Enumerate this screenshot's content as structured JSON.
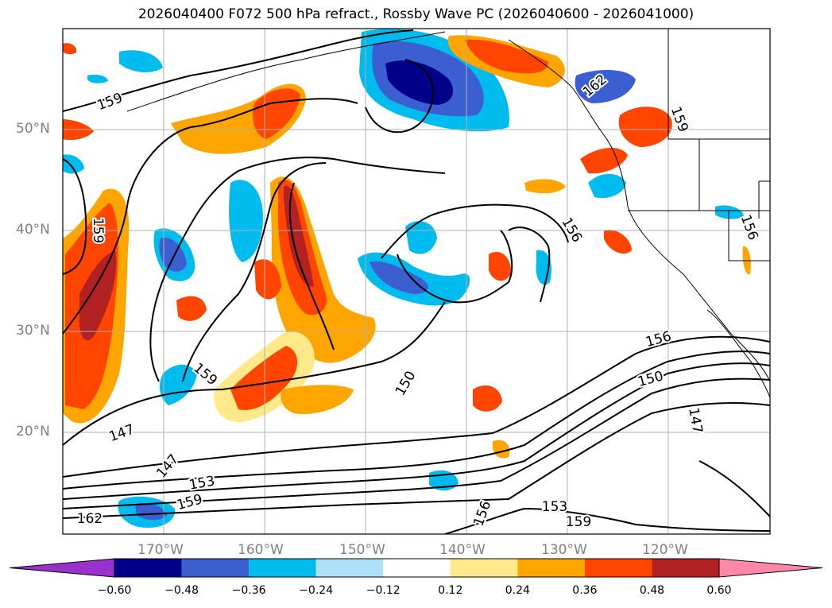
{
  "title": "2026040400 F072 500 hPa refract., Rossby Wave PC (2026040600 - 2026041000)",
  "map": {
    "lon_range": [
      "180°W",
      "110°W"
    ],
    "lat_range": [
      "10°N",
      "60°N"
    ],
    "lat_ticks": [
      "50°N",
      "40°N",
      "30°N",
      "20°N"
    ],
    "lon_ticks": [
      "170°W",
      "160°W",
      "150°W",
      "140°W",
      "130°W",
      "120°W"
    ],
    "grid": true
  },
  "contour_labels": [
    "159",
    "162",
    "159",
    "159",
    "156",
    "156",
    "159",
    "150",
    "147",
    "147",
    "153",
    "159",
    "162",
    "156",
    "153",
    "159",
    "156",
    "150",
    "147"
  ],
  "colorbar": {
    "ticks": [
      "−0.60",
      "−0.48",
      "−0.36",
      "−0.24",
      "−0.12",
      "0.12",
      "0.24",
      "0.36",
      "0.48",
      "0.60"
    ],
    "colors": [
      "#9932cc",
      "#000088",
      "#3b5fd0",
      "#00bbee",
      "#aee0f7",
      "#ffffff",
      "#ffe98a",
      "#ffa500",
      "#ff4500",
      "#b22222",
      "#ff88aa"
    ],
    "extend": "both"
  }
}
